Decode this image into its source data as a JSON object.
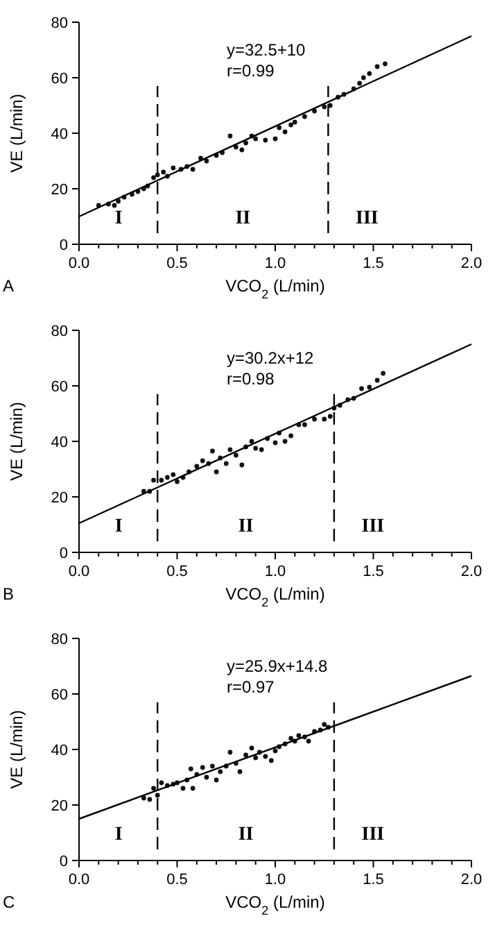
{
  "chart_data": [
    {
      "type": "scatter",
      "title": "A",
      "xlabel": "VCO$_{2}$ (L/min)",
      "ylabel": "VE (L/min)",
      "xlim": [
        0,
        2
      ],
      "ylim": [
        0,
        80
      ],
      "xticks": [
        {
          "value": 0,
          "label": "0.0"
        },
        {
          "value": 0.1,
          "label": null
        },
        {
          "value": 0.2,
          "label": null
        },
        {
          "value": 0.3,
          "label": null
        },
        {
          "value": 0.4,
          "label": null
        },
        {
          "value": 0.5,
          "label": "0.5"
        },
        {
          "value": 0.6,
          "label": null
        },
        {
          "value": 0.7,
          "label": null
        },
        {
          "value": 0.8,
          "label": null
        },
        {
          "value": 0.9,
          "label": null
        },
        {
          "value": 1,
          "label": "1.0"
        },
        {
          "value": 1.1,
          "label": null
        },
        {
          "value": 1.2,
          "label": null
        },
        {
          "value": 1.3,
          "label": null
        },
        {
          "value": 1.4,
          "label": null
        },
        {
          "value": 1.5,
          "label": "1.5"
        },
        {
          "value": 1.6,
          "label": null
        },
        {
          "value": 1.7,
          "label": null
        },
        {
          "value": 1.8,
          "label": null
        },
        {
          "value": 1.9,
          "label": null
        },
        {
          "value": 2,
          "label": "2.0"
        }
      ],
      "yticks": [
        0,
        20,
        40,
        60,
        80
      ],
      "series": [
        {
          "color": "#111111",
          "marker": "circle",
          "x": [
            0.1,
            0.15,
            0.18,
            0.2,
            0.23,
            0.27,
            0.3,
            0.33,
            0.35,
            0.38,
            0.4,
            0.43,
            0.45,
            0.48,
            0.52,
            0.55,
            0.58,
            0.62,
            0.65,
            0.7,
            0.73,
            0.77,
            0.8,
            0.83,
            0.85,
            0.88,
            0.9,
            0.95,
            1.0,
            1.02,
            1.05,
            1.08,
            1.1,
            1.15,
            1.2,
            1.25,
            1.28,
            1.32,
            1.35,
            1.4,
            1.43,
            1.45,
            1.48,
            1.52,
            1.56
          ],
          "values": [
            14,
            14.5,
            14,
            15.5,
            17,
            18,
            19,
            20,
            21,
            24,
            25,
            26,
            24.5,
            27.5,
            27,
            28,
            27,
            31,
            30,
            32,
            33,
            39,
            35,
            34,
            36.5,
            39,
            38,
            37.5,
            38,
            42,
            40.5,
            43,
            44,
            46,
            48,
            49.5,
            50,
            53,
            54,
            56,
            58,
            60,
            61.5,
            64,
            65
          ]
        },
        {
          "type": "line",
          "color": "#000000",
          "x": [
            0,
            2
          ],
          "values": [
            10,
            75
          ]
        }
      ],
      "ref_lines": [
        {
          "axis": "x",
          "value": 0.4,
          "line_style": "dashed"
        },
        {
          "axis": "x",
          "value": 1.27,
          "line_style": "dashed"
        }
      ],
      "annotations": [
        "y=32.5+10",
        "r=0.99",
        "I",
        "II",
        "III"
      ]
    },
    {
      "type": "scatter",
      "title": "B",
      "xlabel": "VCO$_{2}$ (L/min)",
      "ylabel": "VE (L/min)",
      "xlim": [
        0,
        2
      ],
      "ylim": [
        0,
        80
      ],
      "xticks": [
        {
          "value": 0,
          "label": "0.0"
        },
        {
          "value": 0.1,
          "label": null
        },
        {
          "value": 0.2,
          "label": null
        },
        {
          "value": 0.3,
          "label": null
        },
        {
          "value": 0.4,
          "label": null
        },
        {
          "value": 0.5,
          "label": "0.5"
        },
        {
          "value": 0.6,
          "label": null
        },
        {
          "value": 0.7,
          "label": null
        },
        {
          "value": 0.8,
          "label": null
        },
        {
          "value": 0.9,
          "label": null
        },
        {
          "value": 1,
          "label": "1.0"
        },
        {
          "value": 1.1,
          "label": null
        },
        {
          "value": 1.2,
          "label": null
        },
        {
          "value": 1.3,
          "label": null
        },
        {
          "value": 1.4,
          "label": null
        },
        {
          "value": 1.5,
          "label": "1.5"
        },
        {
          "value": 1.6,
          "label": null
        },
        {
          "value": 1.7,
          "label": null
        },
        {
          "value": 1.8,
          "label": null
        },
        {
          "value": 1.9,
          "label": null
        },
        {
          "value": 2,
          "label": "2.0"
        }
      ],
      "yticks": [
        0,
        20,
        40,
        60,
        80
      ],
      "series": [
        {
          "color": "#111111",
          "marker": "circle",
          "x": [
            0.33,
            0.36,
            0.38,
            0.42,
            0.45,
            0.48,
            0.5,
            0.53,
            0.56,
            0.6,
            0.63,
            0.66,
            0.68,
            0.7,
            0.72,
            0.75,
            0.77,
            0.8,
            0.83,
            0.85,
            0.88,
            0.9,
            0.93,
            0.96,
            1.0,
            1.02,
            1.05,
            1.08,
            1.12,
            1.15,
            1.2,
            1.25,
            1.28,
            1.3,
            1.33,
            1.37,
            1.4,
            1.44,
            1.48,
            1.52,
            1.55
          ],
          "values": [
            22,
            22,
            26,
            26,
            27,
            28,
            25.5,
            27,
            29,
            31,
            33,
            32,
            36.5,
            29,
            34,
            32,
            37,
            35,
            31.5,
            38,
            40,
            37.5,
            37,
            41,
            39.5,
            43,
            40,
            42,
            46,
            46,
            48,
            48,
            49,
            52,
            53,
            55,
            55.5,
            59,
            59.5,
            62,
            64.5
          ]
        },
        {
          "type": "line",
          "color": "#000000",
          "x": [
            0,
            2
          ],
          "values": [
            10.5,
            75
          ]
        }
      ],
      "ref_lines": [
        {
          "axis": "x",
          "value": 0.4,
          "line_style": "dashed"
        },
        {
          "axis": "x",
          "value": 1.3,
          "line_style": "dashed"
        }
      ],
      "annotations": [
        "y=30.2x+12",
        "r=0.98",
        "I",
        "II",
        "III"
      ]
    },
    {
      "type": "scatter",
      "title": "C",
      "xlabel": "VCO$_{2}$ (L/min)",
      "ylabel": "VE (L/min)",
      "xlim": [
        0,
        2
      ],
      "ylim": [
        0,
        80
      ],
      "xticks": [
        {
          "value": 0,
          "label": "0.0"
        },
        {
          "value": 0.1,
          "label": null
        },
        {
          "value": 0.2,
          "label": null
        },
        {
          "value": 0.3,
          "label": null
        },
        {
          "value": 0.4,
          "label": null
        },
        {
          "value": 0.5,
          "label": "0.5"
        },
        {
          "value": 0.6,
          "label": null
        },
        {
          "value": 0.7,
          "label": null
        },
        {
          "value": 0.8,
          "label": null
        },
        {
          "value": 0.9,
          "label": null
        },
        {
          "value": 1,
          "label": "1.0"
        },
        {
          "value": 1.1,
          "label": null
        },
        {
          "value": 1.2,
          "label": null
        },
        {
          "value": 1.3,
          "label": null
        },
        {
          "value": 1.4,
          "label": null
        },
        {
          "value": 1.5,
          "label": "1.5"
        },
        {
          "value": 1.6,
          "label": null
        },
        {
          "value": 1.7,
          "label": null
        },
        {
          "value": 1.8,
          "label": null
        },
        {
          "value": 1.9,
          "label": null
        },
        {
          "value": 2,
          "label": "2.0"
        }
      ],
      "yticks": [
        0,
        20,
        40,
        60,
        80
      ],
      "series": [
        {
          "color": "#111111",
          "marker": "circle",
          "x": [
            0.33,
            0.36,
            0.38,
            0.4,
            0.42,
            0.45,
            0.48,
            0.5,
            0.53,
            0.55,
            0.57,
            0.58,
            0.6,
            0.63,
            0.65,
            0.68,
            0.7,
            0.72,
            0.75,
            0.77,
            0.8,
            0.82,
            0.85,
            0.88,
            0.9,
            0.92,
            0.95,
            0.98,
            1.0,
            1.02,
            1.05,
            1.08,
            1.1,
            1.12,
            1.15,
            1.17,
            1.2,
            1.23,
            1.25,
            1.27
          ],
          "values": [
            22.5,
            22,
            26,
            23.5,
            28,
            27,
            27.5,
            28,
            26,
            29,
            33,
            26,
            31,
            33.5,
            30,
            34,
            29,
            32,
            34,
            39,
            35,
            32,
            38,
            40.5,
            37,
            39,
            37.5,
            36,
            39.5,
            41,
            42,
            44,
            43,
            45,
            44.5,
            43,
            46.5,
            47,
            49,
            48
          ]
        },
        {
          "type": "line",
          "color": "#000000",
          "x": [
            0,
            2
          ],
          "values": [
            15,
            66.5
          ]
        }
      ],
      "ref_lines": [
        {
          "axis": "x",
          "value": 0.4,
          "line_style": "dashed"
        },
        {
          "axis": "x",
          "value": 1.3,
          "line_style": "dashed"
        }
      ],
      "annotations": [
        "y=25.9x+14.8",
        "r=0.97",
        "I",
        "II",
        "III"
      ]
    }
  ]
}
